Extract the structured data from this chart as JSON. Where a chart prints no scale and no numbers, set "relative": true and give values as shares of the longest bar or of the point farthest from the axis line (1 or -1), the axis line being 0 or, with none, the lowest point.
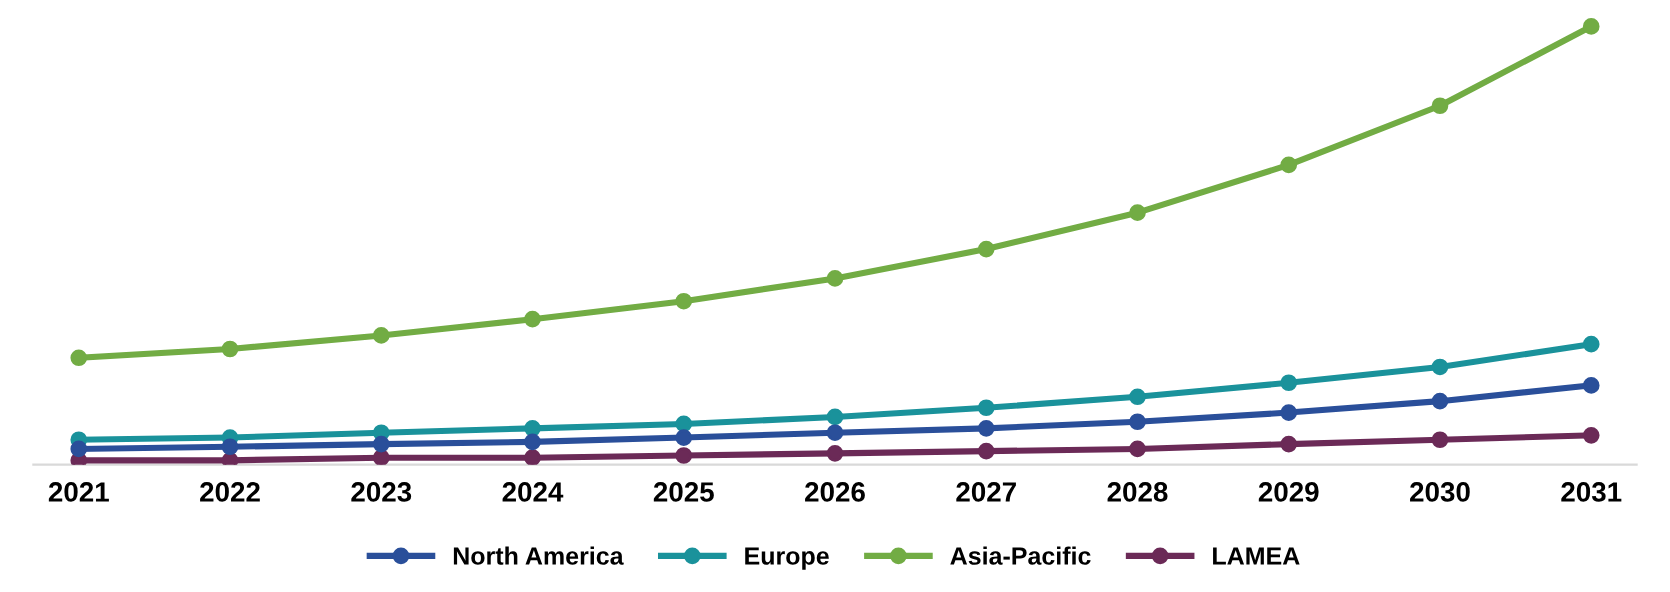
{
  "chart_data": {
    "type": "line",
    "relative": true,
    "categories": [
      "2021",
      "2022",
      "2023",
      "2024",
      "2025",
      "2026",
      "2027",
      "2028",
      "2029",
      "2030",
      "2031"
    ],
    "series": [
      {
        "name": "North America",
        "color": "#2a4f9a",
        "values": [
          0.036,
          0.041,
          0.047,
          0.052,
          0.062,
          0.073,
          0.083,
          0.098,
          0.119,
          0.145,
          0.181
        ]
      },
      {
        "name": "Europe",
        "color": "#1a929b",
        "values": [
          0.057,
          0.062,
          0.073,
          0.083,
          0.093,
          0.109,
          0.13,
          0.155,
          0.187,
          0.223,
          0.275
        ]
      },
      {
        "name": "Asia-Pacific",
        "color": "#72ac44",
        "values": [
          0.244,
          0.264,
          0.295,
          0.332,
          0.373,
          0.425,
          0.492,
          0.575,
          0.684,
          0.819,
          1
        ]
      },
      {
        "name": "LAMEA",
        "color": "#6b2a57",
        "values": [
          0.01,
          0.01,
          0.016,
          0.016,
          0.021,
          0.026,
          0.031,
          0.036,
          0.047,
          0.057,
          0.067
        ]
      }
    ],
    "marker": "circle",
    "line_style": "solid",
    "legend": "bottom",
    "grid": false,
    "tick_labels": "x"
  }
}
